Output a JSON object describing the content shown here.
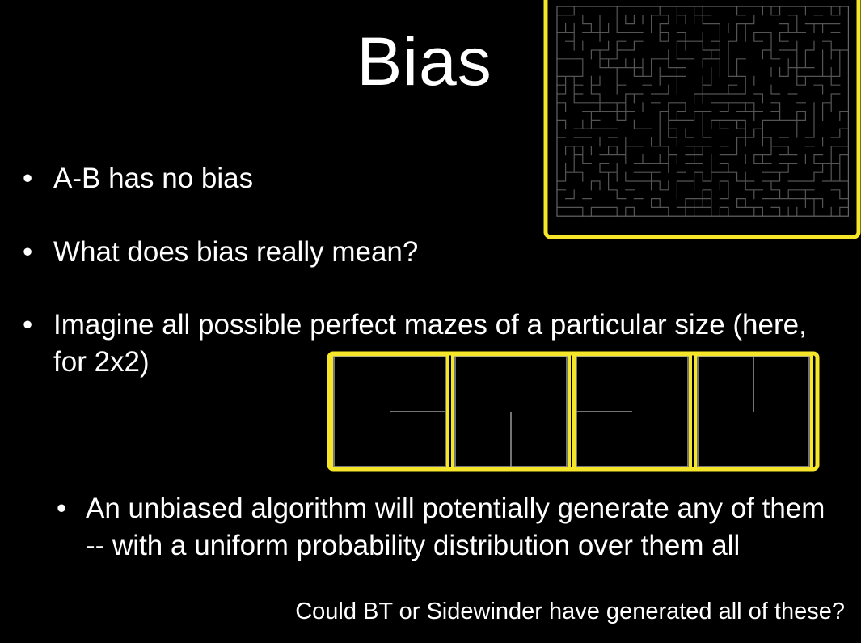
{
  "slide": {
    "title": "Bias",
    "bullets": [
      {
        "marker": "•",
        "text": "A-B has no bias"
      },
      {
        "marker": "•",
        "text": "What does bias really mean?"
      },
      {
        "marker": "•",
        "text": "Imagine all possible perfect mazes of a particular size (here, for 2x2)"
      }
    ],
    "sub_bullet": {
      "marker": "•",
      "text": "An unbiased algorithm will potentially generate any of them -- with a uniform probability distribution over them all"
    },
    "footnote": "Could BT or Sidewinder have generated all of these?"
  },
  "colors": {
    "background": "#000000",
    "text": "#ffffff",
    "highlight_border": "#f5e62a",
    "maze_line": "#9a9a9a"
  },
  "mazes_2x2": [
    {
      "inner_wall": "horizontal-right"
    },
    {
      "inner_wall": "vertical-bottom"
    },
    {
      "inner_wall": "horizontal-left"
    },
    {
      "inner_wall": "vertical-top"
    }
  ]
}
